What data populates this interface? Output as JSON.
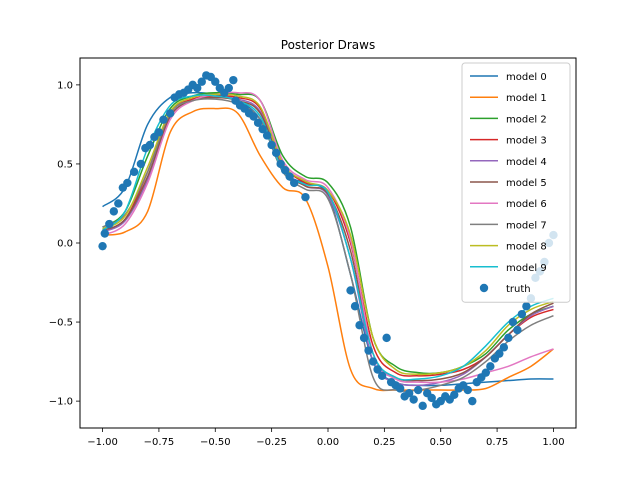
{
  "chart_data": {
    "type": "line",
    "title": "Posterior Draws",
    "xlabel": "",
    "ylabel": "",
    "xlim": [
      -1.1,
      1.1
    ],
    "ylim": [
      -1.17,
      1.17
    ],
    "xticks": [
      -1.0,
      -0.75,
      -0.5,
      -0.25,
      0.0,
      0.25,
      0.5,
      0.75,
      1.0
    ],
    "xtick_labels": [
      "−1.00",
      "−0.75",
      "−0.50",
      "−0.25",
      "0.00",
      "0.25",
      "0.50",
      "0.75",
      "1.00"
    ],
    "yticks": [
      -1.0,
      -0.5,
      0.0,
      0.5,
      1.0
    ],
    "ytick_labels": [
      "−1.0",
      "−0.5",
      "0.0",
      "0.5",
      "1.0"
    ],
    "grid": false,
    "legend_position": "top-right",
    "series": [
      {
        "name": "model 0",
        "color": "#1f77b4",
        "x": [
          -1.0,
          -0.9,
          -0.8,
          -0.7,
          -0.6,
          -0.5,
          -0.4,
          -0.3,
          -0.2,
          -0.1,
          0.0,
          0.1,
          0.2,
          0.3,
          0.4,
          0.5,
          0.6,
          0.7,
          0.8,
          0.9,
          1.0
        ],
        "y": [
          0.23,
          0.35,
          0.75,
          0.92,
          0.95,
          0.94,
          0.9,
          0.78,
          0.45,
          0.38,
          0.3,
          -0.2,
          -0.75,
          -0.88,
          -0.9,
          -0.9,
          -0.89,
          -0.88,
          -0.87,
          -0.86,
          -0.86
        ]
      },
      {
        "name": "model 1",
        "color": "#ff7f0e",
        "x": [
          -1.0,
          -0.9,
          -0.8,
          -0.7,
          -0.6,
          -0.5,
          -0.4,
          -0.3,
          -0.2,
          -0.1,
          0.0,
          0.1,
          0.2,
          0.3,
          0.4,
          0.5,
          0.6,
          0.7,
          0.8,
          0.9,
          1.0
        ],
        "y": [
          0.05,
          0.07,
          0.2,
          0.7,
          0.83,
          0.85,
          0.82,
          0.55,
          0.35,
          0.28,
          -0.15,
          -0.8,
          -0.92,
          -0.93,
          -0.93,
          -0.93,
          -0.93,
          -0.92,
          -0.85,
          -0.78,
          -0.67
        ]
      },
      {
        "name": "model 2",
        "color": "#2ca02c",
        "x": [
          -1.0,
          -0.9,
          -0.8,
          -0.7,
          -0.6,
          -0.5,
          -0.4,
          -0.3,
          -0.2,
          -0.1,
          0.0,
          0.1,
          0.2,
          0.3,
          0.4,
          0.5,
          0.6,
          0.7,
          0.8,
          0.9,
          1.0
        ],
        "y": [
          0.1,
          0.2,
          0.55,
          0.85,
          0.93,
          0.95,
          0.94,
          0.9,
          0.55,
          0.42,
          0.38,
          0.1,
          -0.6,
          -0.78,
          -0.82,
          -0.82,
          -0.78,
          -0.7,
          -0.55,
          -0.45,
          -0.4
        ]
      },
      {
        "name": "model 3",
        "color": "#d62728",
        "x": [
          -1.0,
          -0.9,
          -0.8,
          -0.7,
          -0.6,
          -0.5,
          -0.4,
          -0.3,
          -0.2,
          -0.1,
          0.0,
          0.1,
          0.2,
          0.3,
          0.4,
          0.5,
          0.6,
          0.7,
          0.8,
          0.9,
          1.0
        ],
        "y": [
          0.08,
          0.15,
          0.45,
          0.82,
          0.91,
          0.93,
          0.92,
          0.85,
          0.5,
          0.38,
          0.33,
          0.0,
          -0.65,
          -0.82,
          -0.84,
          -0.83,
          -0.8,
          -0.72,
          -0.58,
          -0.47,
          -0.42
        ]
      },
      {
        "name": "model 4",
        "color": "#9467bd",
        "x": [
          -1.0,
          -0.9,
          -0.8,
          -0.7,
          -0.6,
          -0.5,
          -0.4,
          -0.3,
          -0.2,
          -0.1,
          0.0,
          0.1,
          0.2,
          0.3,
          0.4,
          0.5,
          0.6,
          0.7,
          0.8,
          0.9,
          1.0
        ],
        "y": [
          0.07,
          0.14,
          0.4,
          0.8,
          0.9,
          0.92,
          0.91,
          0.83,
          0.48,
          0.36,
          0.3,
          -0.1,
          -0.75,
          -0.88,
          -0.9,
          -0.88,
          -0.83,
          -0.72,
          -0.58,
          -0.46,
          -0.4
        ]
      },
      {
        "name": "model 5",
        "color": "#8c564b",
        "x": [
          -1.0,
          -0.9,
          -0.8,
          -0.7,
          -0.6,
          -0.5,
          -0.4,
          -0.3,
          -0.2,
          -0.1,
          0.0,
          0.1,
          0.2,
          0.3,
          0.4,
          0.5,
          0.6,
          0.7,
          0.8,
          0.9,
          1.0
        ],
        "y": [
          0.08,
          0.15,
          0.42,
          0.8,
          0.9,
          0.92,
          0.9,
          0.82,
          0.47,
          0.36,
          0.31,
          -0.05,
          -0.7,
          -0.85,
          -0.87,
          -0.86,
          -0.82,
          -0.72,
          -0.58,
          -0.45,
          -0.38
        ]
      },
      {
        "name": "model 6",
        "color": "#e377c2",
        "x": [
          -1.0,
          -0.9,
          -0.8,
          -0.7,
          -0.6,
          -0.5,
          -0.4,
          -0.3,
          -0.2,
          -0.1,
          0.0,
          0.1,
          0.2,
          0.3,
          0.4,
          0.5,
          0.6,
          0.7,
          0.8,
          0.9,
          1.0
        ],
        "y": [
          0.05,
          0.12,
          0.38,
          0.78,
          0.9,
          0.94,
          0.95,
          0.9,
          0.52,
          0.4,
          0.35,
          0.02,
          -0.7,
          -0.86,
          -0.88,
          -0.88,
          -0.86,
          -0.82,
          -0.78,
          -0.72,
          -0.67
        ]
      },
      {
        "name": "model 7",
        "color": "#7f7f7f",
        "x": [
          -1.0,
          -0.9,
          -0.8,
          -0.7,
          -0.6,
          -0.5,
          -0.4,
          -0.3,
          -0.2,
          -0.1,
          0.0,
          0.1,
          0.2,
          0.3,
          0.4,
          0.5,
          0.6,
          0.7,
          0.8,
          0.9,
          1.0
        ],
        "y": [
          0.1,
          0.18,
          0.45,
          0.82,
          0.9,
          0.91,
          0.88,
          0.78,
          0.45,
          0.34,
          0.28,
          -0.2,
          -0.85,
          -0.93,
          -0.93,
          -0.9,
          -0.85,
          -0.75,
          -0.62,
          -0.52,
          -0.46
        ]
      },
      {
        "name": "model 8",
        "color": "#bcbd22",
        "x": [
          -1.0,
          -0.9,
          -0.8,
          -0.7,
          -0.6,
          -0.5,
          -0.4,
          -0.3,
          -0.2,
          -0.1,
          0.0,
          0.1,
          0.2,
          0.3,
          0.4,
          0.5,
          0.6,
          0.7,
          0.8,
          0.9,
          1.0
        ],
        "y": [
          0.09,
          0.17,
          0.48,
          0.83,
          0.92,
          0.94,
          0.93,
          0.86,
          0.5,
          0.39,
          0.33,
          0.05,
          -0.6,
          -0.8,
          -0.83,
          -0.82,
          -0.78,
          -0.68,
          -0.52,
          -0.42,
          -0.37
        ]
      },
      {
        "name": "model 9",
        "color": "#17becf",
        "x": [
          -1.0,
          -0.9,
          -0.8,
          -0.7,
          -0.6,
          -0.5,
          -0.4,
          -0.3,
          -0.2,
          -0.1,
          0.0,
          0.1,
          0.2,
          0.3,
          0.4,
          0.5,
          0.6,
          0.7,
          0.8,
          0.9,
          1.0
        ],
        "y": [
          0.08,
          0.2,
          0.6,
          0.87,
          0.93,
          0.93,
          0.9,
          0.8,
          0.46,
          0.37,
          0.32,
          -0.1,
          -0.7,
          -0.85,
          -0.86,
          -0.84,
          -0.78,
          -0.65,
          -0.5,
          -0.4,
          -0.35
        ]
      }
    ],
    "scatter": {
      "name": "truth",
      "color": "#1f77b4",
      "points": [
        [
          -1.0,
          -0.02
        ],
        [
          -0.99,
          0.06
        ],
        [
          -0.97,
          0.12
        ],
        [
          -0.95,
          0.2
        ],
        [
          -0.93,
          0.25
        ],
        [
          -0.91,
          0.35
        ],
        [
          -0.89,
          0.38
        ],
        [
          -0.86,
          0.45
        ],
        [
          -0.83,
          0.5
        ],
        [
          -0.81,
          0.6
        ],
        [
          -0.79,
          0.62
        ],
        [
          -0.77,
          0.67
        ],
        [
          -0.75,
          0.7
        ],
        [
          -0.73,
          0.78
        ],
        [
          -0.7,
          0.82
        ],
        [
          -0.68,
          0.92
        ],
        [
          -0.66,
          0.94
        ],
        [
          -0.64,
          0.95
        ],
        [
          -0.62,
          0.97
        ],
        [
          -0.6,
          1.0
        ],
        [
          -0.58,
          0.98
        ],
        [
          -0.56,
          1.02
        ],
        [
          -0.54,
          1.06
        ],
        [
          -0.52,
          1.05
        ],
        [
          -0.5,
          1.02
        ],
        [
          -0.48,
          0.98
        ],
        [
          -0.46,
          0.95
        ],
        [
          -0.44,
          0.98
        ],
        [
          -0.42,
          1.03
        ],
        [
          -0.41,
          0.9
        ],
        [
          -0.39,
          0.87
        ],
        [
          -0.37,
          0.85
        ],
        [
          -0.35,
          0.82
        ],
        [
          -0.33,
          0.8
        ],
        [
          -0.31,
          0.76
        ],
        [
          -0.29,
          0.72
        ],
        [
          -0.27,
          0.68
        ],
        [
          -0.25,
          0.62
        ],
        [
          -0.23,
          0.57
        ],
        [
          -0.21,
          0.5
        ],
        [
          -0.19,
          0.46
        ],
        [
          -0.17,
          0.42
        ],
        [
          -0.15,
          0.38
        ],
        [
          -0.1,
          0.29
        ],
        [
          0.1,
          -0.3
        ],
        [
          0.12,
          -0.4
        ],
        [
          0.14,
          -0.52
        ],
        [
          0.16,
          -0.6
        ],
        [
          0.18,
          -0.68
        ],
        [
          0.2,
          -0.75
        ],
        [
          0.22,
          -0.8
        ],
        [
          0.24,
          -0.84
        ],
        [
          0.26,
          -0.6
        ],
        [
          0.28,
          -0.88
        ],
        [
          0.3,
          -0.9
        ],
        [
          0.32,
          -0.92
        ],
        [
          0.34,
          -0.97
        ],
        [
          0.36,
          -0.95
        ],
        [
          0.38,
          -0.99
        ],
        [
          0.4,
          -0.93
        ],
        [
          0.42,
          -1.03
        ],
        [
          0.44,
          -0.95
        ],
        [
          0.46,
          -0.98
        ],
        [
          0.48,
          -1.02
        ],
        [
          0.5,
          -1.0
        ],
        [
          0.52,
          -0.97
        ],
        [
          0.54,
          -0.99
        ],
        [
          0.56,
          -0.96
        ],
        [
          0.58,
          -0.92
        ],
        [
          0.6,
          -0.9
        ],
        [
          0.62,
          -0.93
        ],
        [
          0.64,
          -1.0
        ],
        [
          0.66,
          -0.88
        ],
        [
          0.68,
          -0.85
        ],
        [
          0.7,
          -0.82
        ],
        [
          0.72,
          -0.78
        ],
        [
          0.74,
          -0.73
        ],
        [
          0.76,
          -0.7
        ],
        [
          0.78,
          -0.66
        ],
        [
          0.8,
          -0.6
        ],
        [
          0.82,
          -0.5
        ],
        [
          0.84,
          -0.55
        ],
        [
          0.86,
          -0.45
        ],
        [
          0.88,
          -0.4
        ],
        [
          0.9,
          -0.35
        ],
        [
          0.92,
          -0.22
        ],
        [
          0.94,
          -0.18
        ],
        [
          0.96,
          -0.12
        ],
        [
          0.98,
          0.0
        ],
        [
          1.0,
          0.05
        ]
      ]
    }
  }
}
